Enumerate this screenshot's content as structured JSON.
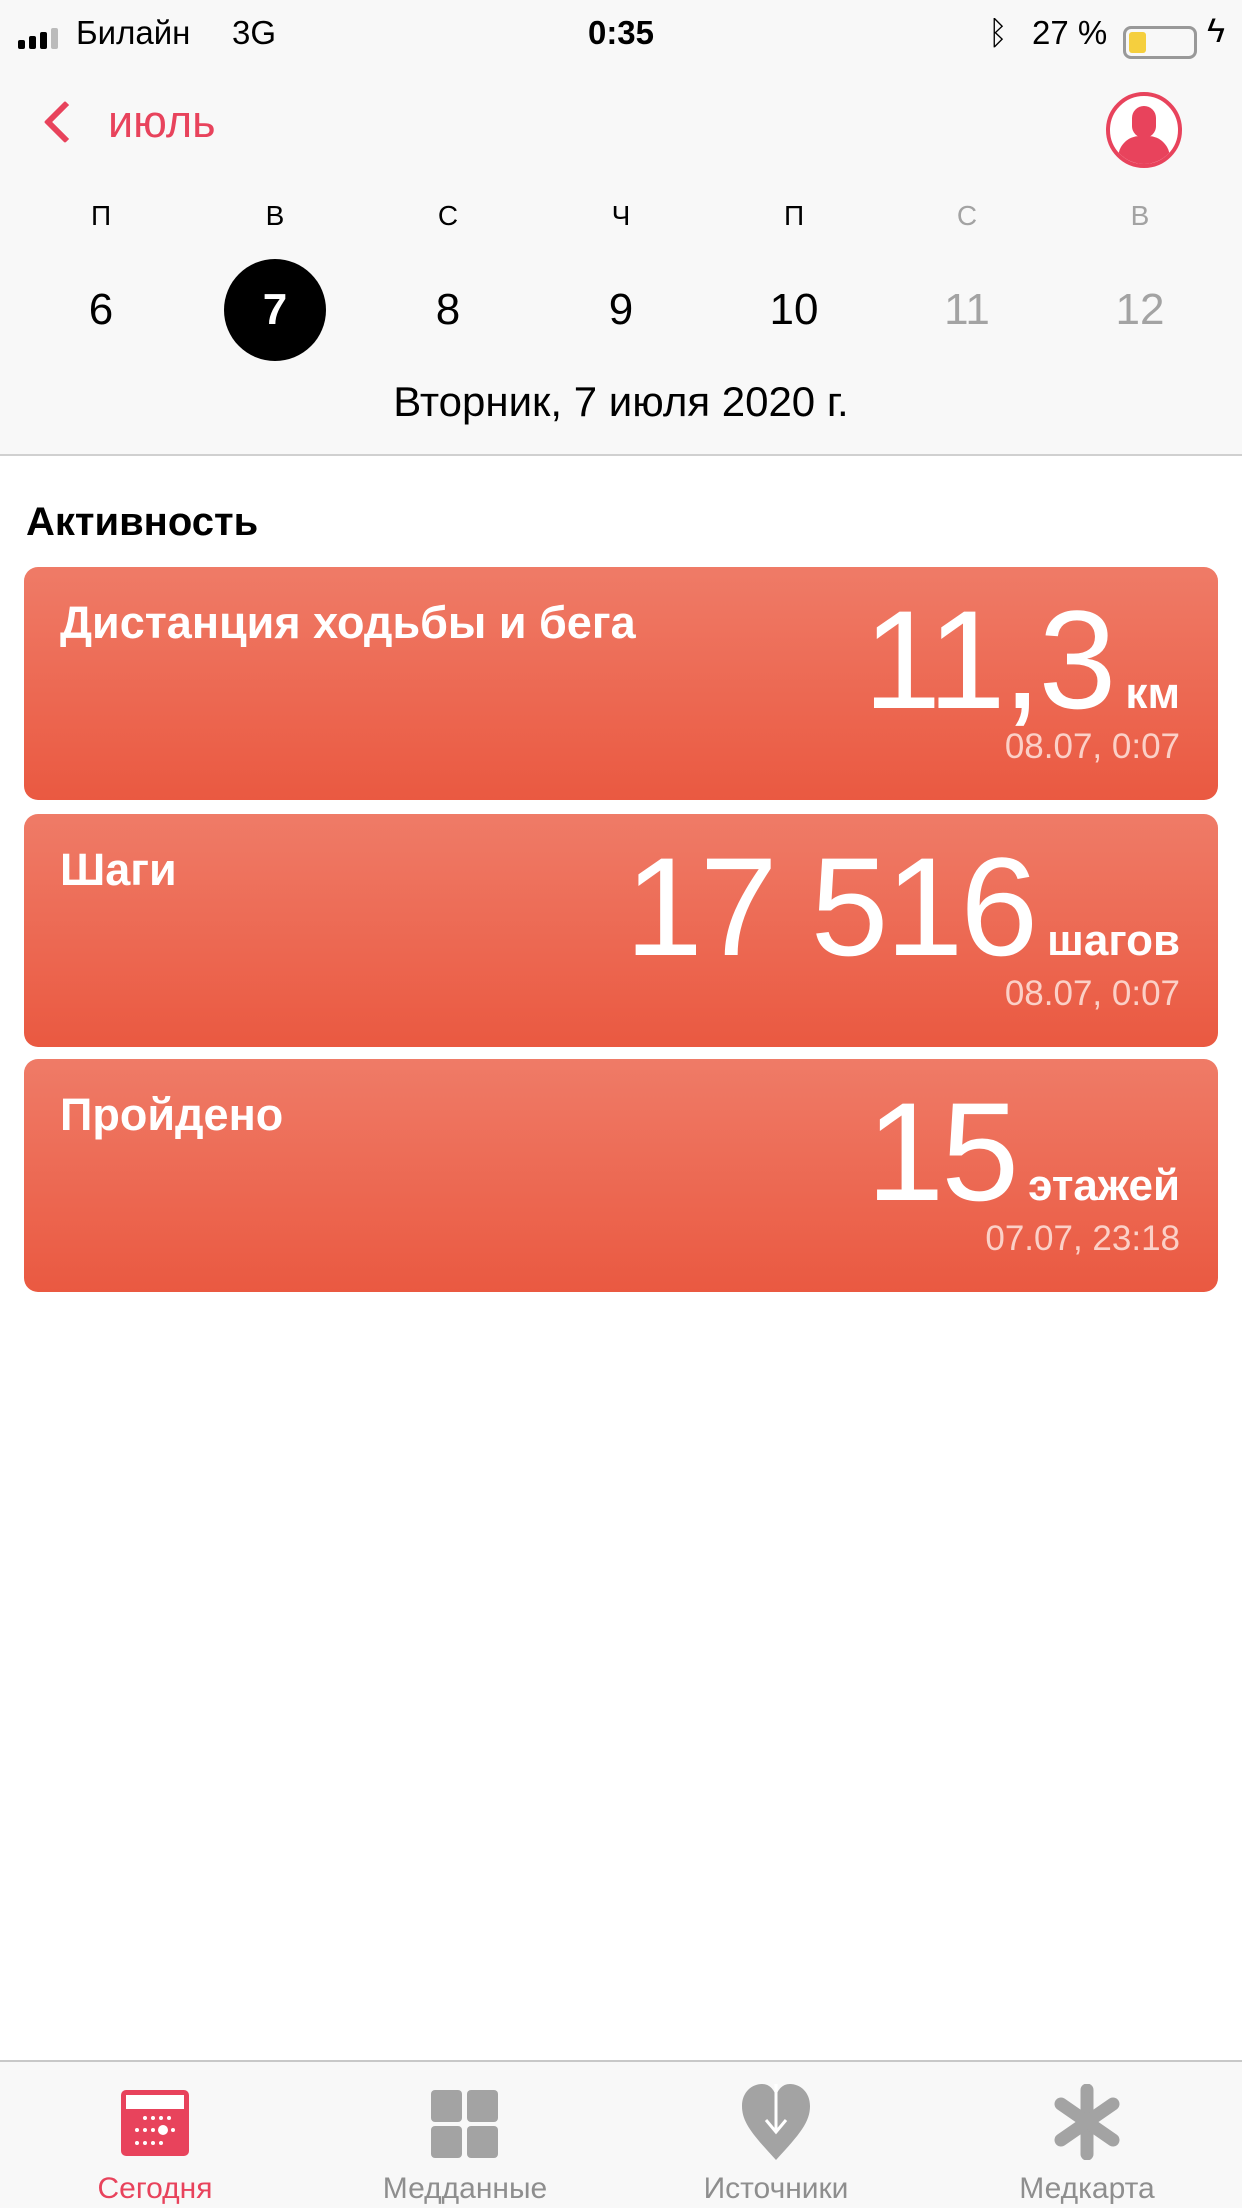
{
  "status_bar": {
    "carrier": "Билайн",
    "network": "3G",
    "time": "0:35",
    "battery_percent": "27 %",
    "battery_level": 0.27,
    "icons": [
      "signal-icon",
      "bluetooth-icon",
      "battery-icon",
      "charging-icon"
    ]
  },
  "header": {
    "back_label": "июль",
    "weekdays": [
      "П",
      "В",
      "С",
      "Ч",
      "П",
      "С",
      "В"
    ],
    "dates": [
      "6",
      "7",
      "8",
      "9",
      "10",
      "11",
      "12"
    ],
    "selected_date": "7",
    "full_date": "Вторник, 7 июля 2020 г."
  },
  "section_title": "Активность",
  "cards": [
    {
      "title": "Дистанция ходьбы и бега",
      "value": "11,3",
      "unit": "км",
      "timestamp": "08.07, 0:07"
    },
    {
      "title": "Шаги",
      "value": "17 516",
      "unit": "шагов",
      "timestamp": "08.07, 0:07"
    },
    {
      "title": "Пройдено",
      "value": "15",
      "unit": "этажей",
      "timestamp": "07.07, 23:18"
    }
  ],
  "colors": {
    "accent": "#e8435c",
    "card_top": "#ef7b67",
    "card_bottom": "#ea5941",
    "inactive": "#8e8e8e"
  },
  "tabs": [
    {
      "label": "Сегодня",
      "icon": "calendar-icon",
      "active": true
    },
    {
      "label": "Медданные",
      "icon": "grid-icon",
      "active": false
    },
    {
      "label": "Источники",
      "icon": "heart-download-icon",
      "active": false
    },
    {
      "label": "Медкарта",
      "icon": "asterisk-icon",
      "active": false
    }
  ]
}
